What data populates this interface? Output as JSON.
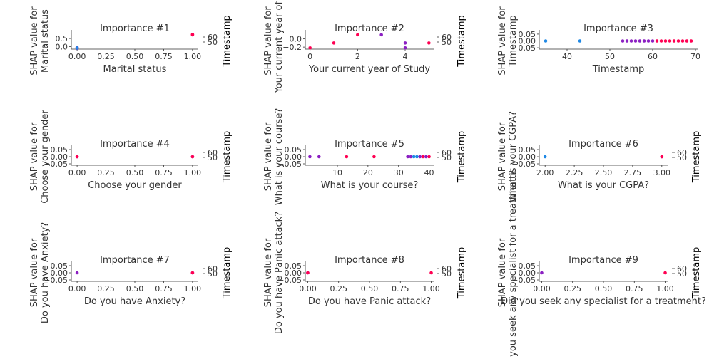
{
  "colors": {
    "low": "#1e88e5",
    "mid": "#8b1fc2",
    "high": "#ff0052",
    "axis": "#333333",
    "text": "#333333"
  },
  "chart_data": [
    {
      "type": "scatter",
      "title": "Importance #1",
      "xlabel": "Marital status",
      "ylabel": [
        "SHAP value for",
        "Marital status"
      ],
      "colorbar_label": "Timestamp",
      "colorbar_ticks": [
        "60",
        "50"
      ],
      "xticks": [
        0.0,
        0.25,
        0.5,
        0.75,
        1.0
      ],
      "xtick_labels": [
        "0.00",
        "0.25",
        "0.50",
        "0.75",
        "1.00"
      ],
      "yticks": [
        0.0,
        0.5
      ],
      "ytick_labels": [
        "0.0",
        "0.5"
      ],
      "xlim": [
        -0.05,
        1.05
      ],
      "ylim": [
        -0.15,
        0.85
      ],
      "points": [
        {
          "x": 0.0,
          "y": -0.1,
          "c": "mid"
        },
        {
          "x": 0.0,
          "y": -0.05,
          "c": "mid"
        },
        {
          "x": 0.0,
          "y": -0.08,
          "c": "low"
        },
        {
          "x": 1.0,
          "y": 0.75,
          "c": "high"
        },
        {
          "x": 1.0,
          "y": 0.72,
          "c": "high"
        }
      ]
    },
    {
      "type": "scatter",
      "title": "Importance #2",
      "xlabel": "Your current year of Study",
      "ylabel": [
        "SHAP value for",
        "Your current year of St"
      ],
      "colorbar_label": "Timestamp",
      "colorbar_ticks": [
        "60",
        "50"
      ],
      "xticks": [
        0,
        2,
        4
      ],
      "xtick_labels": [
        "0",
        "2",
        "4"
      ],
      "yticks": [
        -0.2,
        0.0
      ],
      "ytick_labels": [
        "−0.2",
        "0.0"
      ],
      "xlim": [
        -0.2,
        5.2
      ],
      "ylim": [
        -0.25,
        0.15
      ],
      "points": [
        {
          "x": 0,
          "y": -0.22,
          "c": "high"
        },
        {
          "x": 1,
          "y": -0.1,
          "c": "high"
        },
        {
          "x": 2,
          "y": 0.1,
          "c": "high"
        },
        {
          "x": 3,
          "y": 0.1,
          "c": "mid"
        },
        {
          "x": 4,
          "y": -0.1,
          "c": "mid"
        },
        {
          "x": 4,
          "y": -0.22,
          "c": "mid"
        },
        {
          "x": 5,
          "y": -0.1,
          "c": "high"
        }
      ]
    },
    {
      "type": "scatter",
      "title": "Importance #3",
      "xlabel": "Timestamp",
      "ylabel": [
        "SHAP value for",
        "Timestamp"
      ],
      "colorbar_label": "",
      "colorbar_ticks": [],
      "xticks": [
        40,
        50,
        60,
        70
      ],
      "xtick_labels": [
        "40",
        "50",
        "60",
        "70"
      ],
      "yticks": [
        -0.05,
        0.0,
        0.05
      ],
      "ytick_labels": [
        "−0.05",
        "0.00",
        "0.05"
      ],
      "xlim": [
        33.5,
        70.5
      ],
      "ylim": [
        -0.06,
        0.06
      ],
      "points": [
        {
          "x": 35,
          "y": 0,
          "c": "low"
        },
        {
          "x": 43,
          "y": 0,
          "c": "low"
        },
        {
          "x": 53,
          "y": 0,
          "c": "mid"
        },
        {
          "x": 54,
          "y": 0,
          "c": "mid"
        },
        {
          "x": 55,
          "y": 0,
          "c": "mid"
        },
        {
          "x": 56,
          "y": 0,
          "c": "mid"
        },
        {
          "x": 57,
          "y": 0,
          "c": "mid"
        },
        {
          "x": 58,
          "y": 0,
          "c": "mid"
        },
        {
          "x": 59,
          "y": 0,
          "c": "mid"
        },
        {
          "x": 60,
          "y": 0,
          "c": "mid"
        },
        {
          "x": 61,
          "y": 0,
          "c": "high"
        },
        {
          "x": 62,
          "y": 0,
          "c": "high"
        },
        {
          "x": 63,
          "y": 0,
          "c": "high"
        },
        {
          "x": 64,
          "y": 0,
          "c": "high"
        },
        {
          "x": 65,
          "y": 0,
          "c": "high"
        },
        {
          "x": 66,
          "y": 0,
          "c": "high"
        },
        {
          "x": 67,
          "y": 0,
          "c": "high"
        },
        {
          "x": 68,
          "y": 0,
          "c": "high"
        },
        {
          "x": 69,
          "y": 0,
          "c": "high"
        }
      ]
    },
    {
      "type": "scatter",
      "title": "Importance #4",
      "xlabel": "Choose your gender",
      "ylabel": [
        "SHAP value for",
        "Choose your gender"
      ],
      "colorbar_label": "Timestamp",
      "colorbar_ticks": [
        "60",
        "50"
      ],
      "xticks": [
        0.0,
        0.25,
        0.5,
        0.75,
        1.0
      ],
      "xtick_labels": [
        "0.00",
        "0.25",
        "0.50",
        "0.75",
        "1.00"
      ],
      "yticks": [
        -0.05,
        0.0,
        0.05
      ],
      "ytick_labels": [
        "−0.05",
        "0.00",
        "0.05"
      ],
      "xlim": [
        -0.05,
        1.05
      ],
      "ylim": [
        -0.06,
        0.06
      ],
      "points": [
        {
          "x": 0.0,
          "y": 0,
          "c": "mid"
        },
        {
          "x": 0.0,
          "y": 0,
          "c": "high"
        },
        {
          "x": 1.0,
          "y": 0,
          "c": "mid"
        },
        {
          "x": 1.0,
          "y": 0,
          "c": "high"
        }
      ]
    },
    {
      "type": "scatter",
      "title": "Importance #5",
      "xlabel": "What is your course?",
      "ylabel": [
        "SHAP value for",
        "What is your course?"
      ],
      "colorbar_label": "Timestamp",
      "colorbar_ticks": [
        "60",
        "50"
      ],
      "xticks": [
        10,
        20,
        30,
        40
      ],
      "xtick_labels": [
        "10",
        "20",
        "30",
        "40"
      ],
      "yticks": [
        -0.05,
        0.0,
        0.05
      ],
      "ytick_labels": [
        "−0.05",
        "0.00",
        "0.05"
      ],
      "xlim": [
        -0.5,
        41.5
      ],
      "ylim": [
        -0.06,
        0.06
      ],
      "points": [
        {
          "x": 1,
          "y": 0,
          "c": "mid"
        },
        {
          "x": 4,
          "y": 0,
          "c": "mid"
        },
        {
          "x": 13,
          "y": 0,
          "c": "high"
        },
        {
          "x": 22,
          "y": 0,
          "c": "high"
        },
        {
          "x": 33,
          "y": 0,
          "c": "mid"
        },
        {
          "x": 34,
          "y": 0,
          "c": "mid"
        },
        {
          "x": 35,
          "y": 0,
          "c": "low"
        },
        {
          "x": 36,
          "y": 0,
          "c": "low"
        },
        {
          "x": 37,
          "y": 0,
          "c": "mid"
        },
        {
          "x": 38,
          "y": 0,
          "c": "high"
        },
        {
          "x": 39,
          "y": 0,
          "c": "mid"
        },
        {
          "x": 40,
          "y": 0,
          "c": "high"
        }
      ]
    },
    {
      "type": "scatter",
      "title": "Importance #6",
      "xlabel": "What is your CGPA?",
      "ylabel": [
        "SHAP value for",
        "What is your CGPA?"
      ],
      "colorbar_label": "Timestamp",
      "colorbar_ticks": [
        "60",
        "50"
      ],
      "xticks": [
        2.0,
        2.25,
        2.5,
        2.75,
        3.0
      ],
      "xtick_labels": [
        "2.00",
        "2.25",
        "2.50",
        "2.75",
        "3.00"
      ],
      "yticks": [
        -0.05,
        0.0,
        0.05
      ],
      "ytick_labels": [
        "−0.05",
        "0.00",
        "0.05"
      ],
      "xlim": [
        1.95,
        3.05
      ],
      "ylim": [
        -0.06,
        0.06
      ],
      "points": [
        {
          "x": 2.0,
          "y": 0,
          "c": "low"
        },
        {
          "x": 3.0,
          "y": 0,
          "c": "mid"
        },
        {
          "x": 3.0,
          "y": 0,
          "c": "high"
        }
      ]
    },
    {
      "type": "scatter",
      "title": "Importance #7",
      "xlabel": "Do you have Anxiety?",
      "ylabel": [
        "SHAP value for",
        "Do you have Anxiety?"
      ],
      "colorbar_label": "Timestamp",
      "colorbar_ticks": [
        "60",
        "50"
      ],
      "xticks": [
        0.0,
        0.25,
        0.5,
        0.75,
        1.0
      ],
      "xtick_labels": [
        "0.00",
        "0.25",
        "0.50",
        "0.75",
        "1.00"
      ],
      "yticks": [
        -0.05,
        0.0,
        0.05
      ],
      "ytick_labels": [
        "−0.05",
        "0.00",
        "0.05"
      ],
      "xlim": [
        -0.05,
        1.05
      ],
      "ylim": [
        -0.06,
        0.06
      ],
      "points": [
        {
          "x": 0.0,
          "y": 0,
          "c": "mid"
        },
        {
          "x": 1.0,
          "y": 0,
          "c": "mid"
        },
        {
          "x": 1.0,
          "y": 0,
          "c": "high"
        }
      ]
    },
    {
      "type": "scatter",
      "title": "Importance #8",
      "xlabel": "Do you have Panic attack?",
      "ylabel": [
        "SHAP value for",
        "Do you have Panic attack?"
      ],
      "colorbar_label": "Timestamp",
      "colorbar_ticks": [
        "60",
        "50"
      ],
      "xticks": [
        0.0,
        0.25,
        0.5,
        0.75,
        1.0
      ],
      "xtick_labels": [
        "0.00",
        "0.25",
        "0.50",
        "0.75",
        "1.00"
      ],
      "yticks": [
        -0.05,
        0.0,
        0.05
      ],
      "ytick_labels": [
        "−0.05",
        "0.00",
        "0.05"
      ],
      "xlim": [
        -0.02,
        1.02
      ],
      "ylim": [
        -0.06,
        0.06
      ],
      "points": [
        {
          "x": 0.0,
          "y": 0,
          "c": "mid"
        },
        {
          "x": 0.0,
          "y": 0,
          "c": "high"
        },
        {
          "x": 1.0,
          "y": 0,
          "c": "high"
        }
      ]
    },
    {
      "type": "scatter",
      "title": "Importance #9",
      "xlabel": "Did you seek any specialist for a treatment?",
      "ylabel": [
        "SHAP value for",
        "Did you seek any specialist for a treatment?"
      ],
      "colorbar_label": "Timestamp",
      "colorbar_ticks": [
        "60",
        "50"
      ],
      "xticks": [
        0.0,
        0.25,
        0.5,
        0.75,
        1.0
      ],
      "xtick_labels": [
        "0.00",
        "0.25",
        "0.50",
        "0.75",
        "1.00"
      ],
      "yticks": [
        -0.05,
        0.0,
        0.05
      ],
      "ytick_labels": [
        "−0.05",
        "0.00",
        "0.05"
      ],
      "xlim": [
        -0.02,
        1.02
      ],
      "ylim": [
        -0.06,
        0.06
      ],
      "points": [
        {
          "x": 0.0,
          "y": 0,
          "c": "mid"
        },
        {
          "x": 1.0,
          "y": 0,
          "c": "high"
        }
      ]
    }
  ]
}
